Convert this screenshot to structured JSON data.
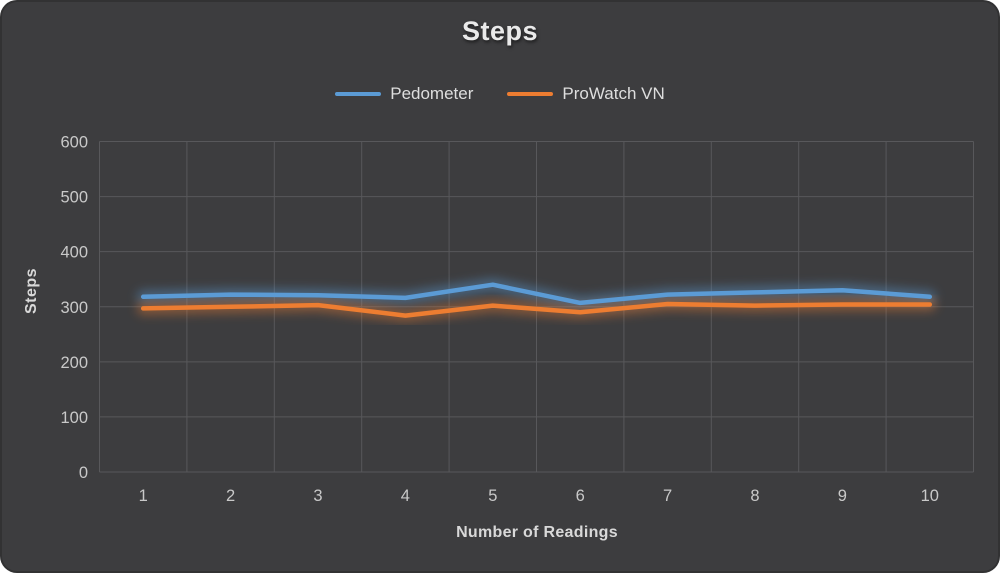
{
  "chart_data": {
    "type": "line",
    "title": "Steps",
    "xlabel": "Number of Readings",
    "ylabel": "Steps",
    "categories": [
      "1",
      "2",
      "3",
      "4",
      "5",
      "6",
      "7",
      "8",
      "9",
      "10"
    ],
    "series": [
      {
        "name": "Pedometer",
        "color": "#5B9BD5",
        "values": [
          318,
          322,
          321,
          316,
          340,
          307,
          322,
          326,
          330,
          318
        ]
      },
      {
        "name": "ProWatch VN",
        "color": "#ED7D31",
        "values": [
          297,
          300,
          303,
          284,
          302,
          290,
          305,
          302,
          304,
          304
        ]
      }
    ],
    "y_ticks": [
      0,
      100,
      200,
      300,
      400,
      500,
      600
    ],
    "ylim": [
      0,
      600
    ],
    "grid": true,
    "legend_position": "top",
    "colors": {
      "background": "#3D3D3F",
      "gridline": "#58585B",
      "tick_text": "#C9C9C9",
      "title_text": "#EAEAEA"
    }
  }
}
